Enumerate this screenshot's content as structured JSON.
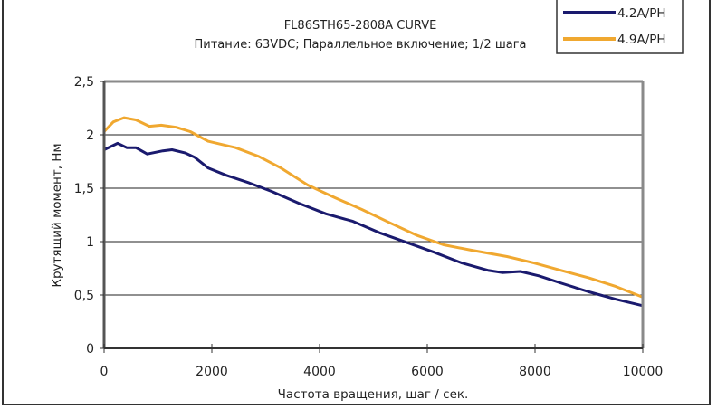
{
  "chart_data": {
    "type": "line",
    "title": "FL86STH65-2808A CURVE",
    "subtitle": "Питание: 63VDC; Параллельное включение; 1/2 шага",
    "xlabel": "Частота вращения, шаг / сек.",
    "ylabel": "Крутящий момент, Нм",
    "xlim": [
      0,
      10000
    ],
    "ylim": [
      0,
      2.5
    ],
    "xticks": [
      0,
      2000,
      4000,
      6000,
      8000,
      10000
    ],
    "xtick_labels": [
      "0",
      "2000",
      "4000",
      "6000",
      "8000",
      "10000"
    ],
    "yticks": [
      0,
      0.5,
      1,
      1.5,
      2,
      2.5
    ],
    "ytick_labels": [
      "0",
      "0,5",
      "1",
      "1,5",
      "2",
      "2,5"
    ],
    "grid": "horizontal",
    "legend_position": "top-right",
    "series": [
      {
        "name": "4.2A/PH",
        "color": "#1a1a6e",
        "x": [
          0,
          250,
          420,
          590,
          800,
          1090,
          1260,
          1510,
          1680,
          1930,
          2270,
          2690,
          3110,
          3610,
          4120,
          4620,
          5130,
          5630,
          6130,
          6640,
          7140,
          7390,
          7730,
          8070,
          8490,
          9000,
          9500,
          10000
        ],
        "y": [
          1.86,
          1.92,
          1.88,
          1.88,
          1.82,
          1.85,
          1.86,
          1.83,
          1.79,
          1.69,
          1.62,
          1.55,
          1.47,
          1.36,
          1.26,
          1.19,
          1.08,
          0.99,
          0.9,
          0.8,
          0.73,
          0.71,
          0.72,
          0.68,
          0.61,
          0.53,
          0.46,
          0.4
        ]
      },
      {
        "name": "4.9A/PH",
        "color": "#f0a830",
        "x": [
          0,
          170,
          370,
          590,
          840,
          1060,
          1340,
          1600,
          1930,
          2440,
          2860,
          3280,
          3780,
          4290,
          4790,
          5290,
          5800,
          6300,
          6810,
          7480,
          7980,
          8490,
          9000,
          9500,
          10000
        ],
        "y": [
          2.03,
          2.12,
          2.16,
          2.14,
          2.08,
          2.09,
          2.07,
          2.03,
          1.94,
          1.88,
          1.8,
          1.69,
          1.53,
          1.41,
          1.3,
          1.18,
          1.06,
          0.97,
          0.92,
          0.86,
          0.8,
          0.73,
          0.66,
          0.58,
          0.48
        ]
      }
    ]
  }
}
